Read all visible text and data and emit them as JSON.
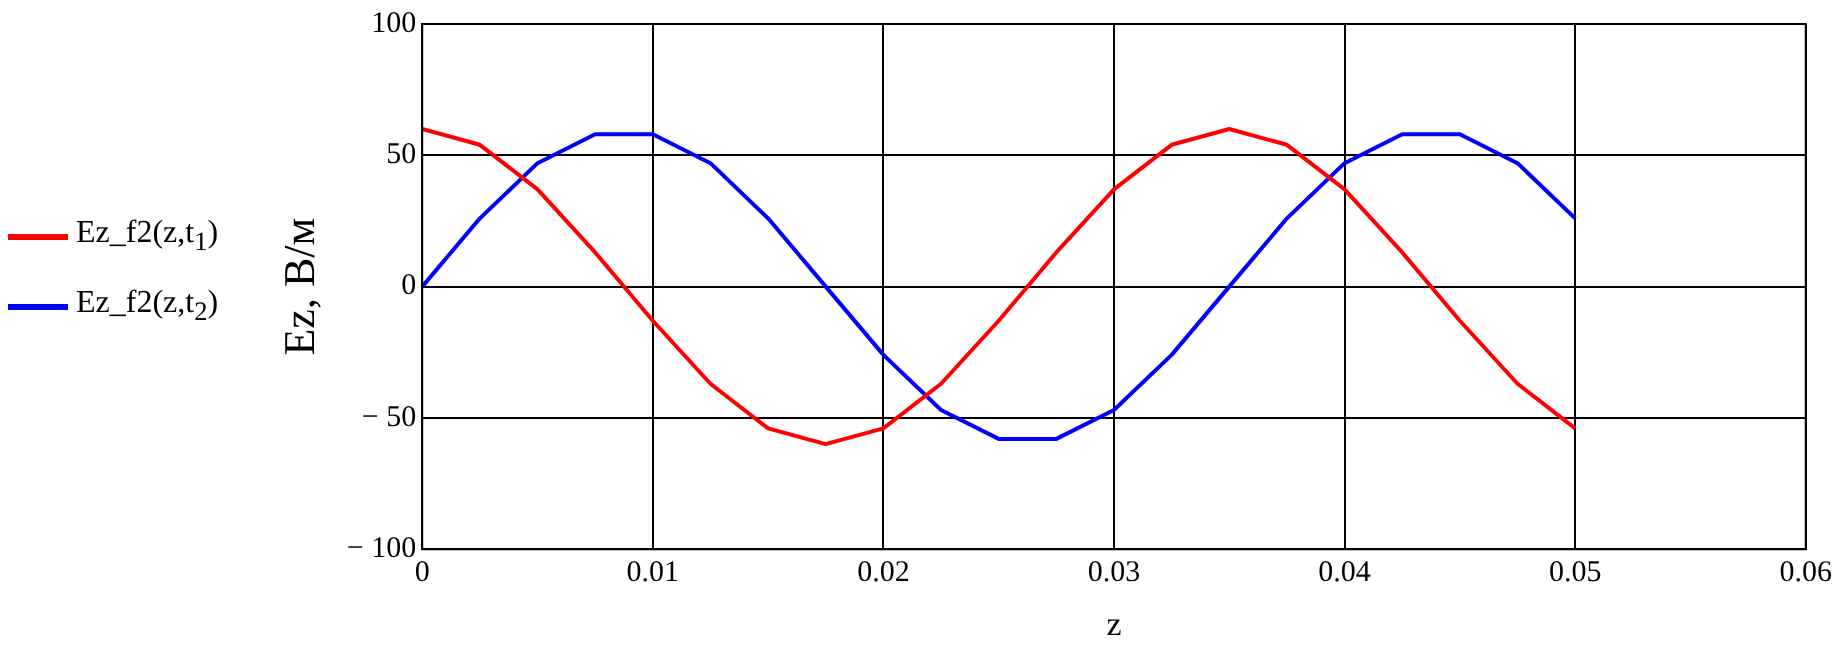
{
  "chart_data": {
    "type": "line",
    "xlabel": "z",
    "ylabel": "Ez, В/м",
    "x": [
      0,
      0.0025,
      0.005,
      0.0075,
      0.01,
      0.0125,
      0.015,
      0.0175,
      0.02,
      0.0225,
      0.025,
      0.0275,
      0.03,
      0.0325,
      0.035,
      0.0375,
      0.04,
      0.0425,
      0.045,
      0.0475,
      0.05
    ],
    "series": [
      {
        "name": "Ez_f2(z,t$_{1}$)",
        "color": "#ff0000",
        "values": [
          60,
          54,
          37,
          13,
          -13,
          -37,
          -54,
          -60,
          -54,
          -37,
          -13,
          13,
          37,
          54,
          60,
          54,
          37,
          13,
          -13,
          -37,
          -54
        ]
      },
      {
        "name": "Ez_f2(z,t$_{2}$)",
        "color": "#0000ff",
        "values": [
          0,
          26,
          47,
          58,
          58,
          47,
          26,
          0,
          -26,
          -47,
          -58,
          -58,
          -47,
          -26,
          0,
          26,
          47,
          58,
          58,
          47,
          26
        ]
      }
    ],
    "xlim": [
      0,
      0.06
    ],
    "xticks": [
      0,
      0.01,
      0.02,
      0.03,
      0.04,
      0.05,
      0.06
    ],
    "ylim": [
      -100,
      100
    ],
    "yticks": [
      {
        "value": -100,
        "label": "− 100"
      },
      {
        "value": -50,
        "label": "− 50"
      },
      0,
      50,
      100
    ],
    "grid": true,
    "legend": "left",
    "marker": "none",
    "line_style": "solid"
  }
}
